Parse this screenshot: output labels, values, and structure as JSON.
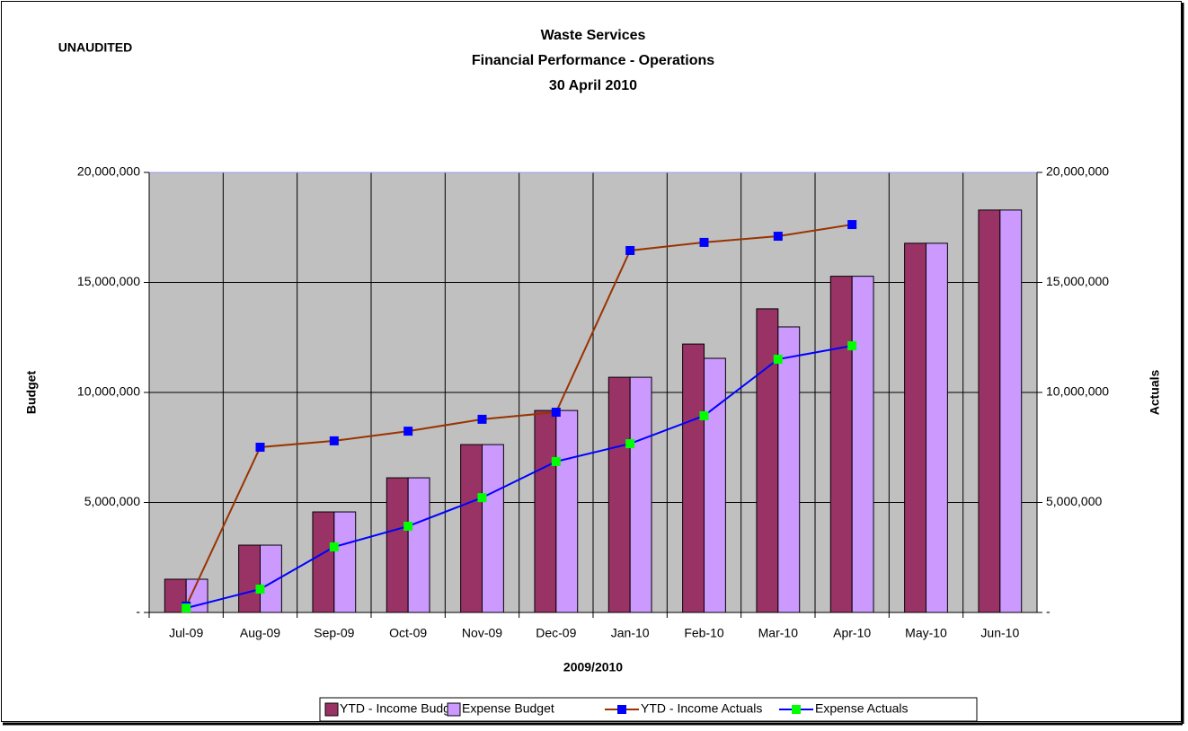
{
  "chart_data": {
    "type": "bar",
    "annotation": "UNAUDITED",
    "title": "Waste Services",
    "subtitle": [
      "Financial Performance - Operations",
      "30 April 2010"
    ],
    "x_label": "2009/2010",
    "y_label": "Budget",
    "y2_label": "Actuals",
    "categories": [
      "Jul-09",
      "Aug-09",
      "Sep-09",
      "Oct-09",
      "Nov-09",
      "Dec-09",
      "Jan-10",
      "Feb-10",
      "Mar-10",
      "Apr-10",
      "May-10",
      "Jun-10"
    ],
    "series": [
      {
        "name": "YTD - Income Budget",
        "type": "bar",
        "color": "#993366",
        "values": [
          1510000,
          3060000,
          4570000,
          6120000,
          7630000,
          9180000,
          10690000,
          12200000,
          13800000,
          15280000,
          16780000,
          18290000
        ]
      },
      {
        "name": "Expense Budget",
        "type": "bar",
        "color": "#cc99ff",
        "values": [
          1510000,
          3060000,
          4570000,
          6120000,
          7630000,
          9180000,
          10690000,
          11550000,
          12980000,
          15280000,
          16780000,
          18290000
        ]
      },
      {
        "name": "YTD - Income Actuals",
        "type": "line",
        "axis": "y2",
        "color": "#993300",
        "marker_color": "#0000ff",
        "values": [
          290000,
          7510000,
          7800000,
          8240000,
          8780000,
          9100000,
          16450000,
          16820000,
          17100000,
          17630000,
          null,
          null
        ]
      },
      {
        "name": "Expense Actuals",
        "type": "line",
        "axis": "y2",
        "color": "#0000ff",
        "marker_color": "#00ff00",
        "values": [
          200000,
          1060000,
          2980000,
          3920000,
          5220000,
          6860000,
          7670000,
          8940000,
          11510000,
          12120000,
          null,
          null
        ]
      }
    ],
    "ylim": [
      0,
      20000000
    ],
    "yticks": [
      {
        "value": 0,
        "label": "-"
      },
      {
        "value": 5000000,
        "label": "5,000,000"
      },
      {
        "value": 10000000,
        "label": "10,000,000"
      },
      {
        "value": 15000000,
        "label": "15,000,000"
      },
      {
        "value": 20000000,
        "label": "20,000,000"
      }
    ],
    "y2lim": [
      0,
      20000000
    ],
    "y2ticks": [
      {
        "value": 0,
        "label": "-"
      },
      {
        "value": 5000000,
        "label": "5,000,000"
      },
      {
        "value": 10000000,
        "label": "10,000,000"
      },
      {
        "value": 15000000,
        "label": "15,000,000"
      },
      {
        "value": 20000000,
        "label": "20,000,000"
      }
    ],
    "grid": true,
    "plot_background": "#c0c0c0",
    "legend": "bottom"
  }
}
